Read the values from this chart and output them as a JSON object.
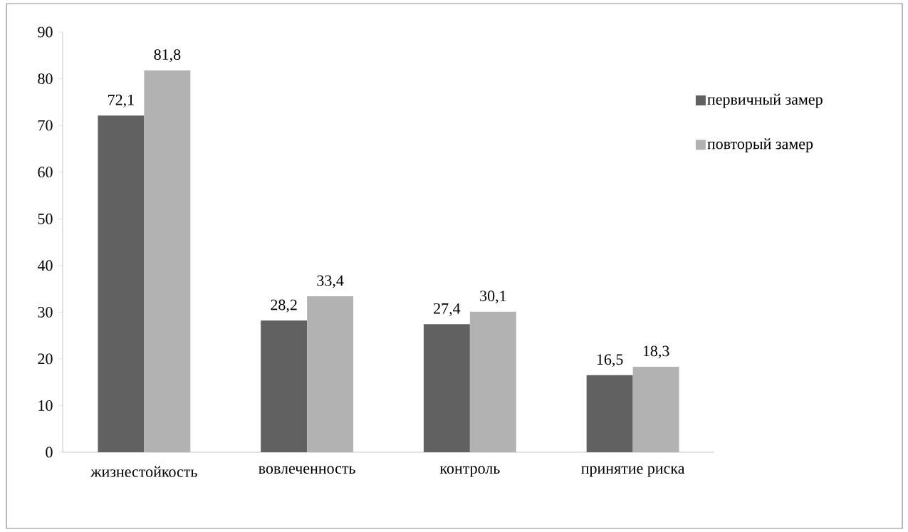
{
  "chart_data": {
    "type": "bar",
    "categories": [
      "жизнестойкость",
      "вовлеченность",
      "контроль",
      "принятие риска"
    ],
    "series": [
      {
        "name": "первичный замер",
        "color": "#616161",
        "values": [
          72.1,
          28.2,
          27.4,
          16.5
        ],
        "value_labels": [
          "72,1",
          "28,2",
          "27,4",
          "16,5"
        ]
      },
      {
        "name": "повторый замер",
        "color": "#b2b2b2",
        "values": [
          81.8,
          33.4,
          30.1,
          18.3
        ],
        "value_labels": [
          "81,8",
          "33,4",
          "30,1",
          "18,3"
        ]
      }
    ],
    "ylim": [
      0,
      90
    ],
    "yticks": [
      0,
      10,
      20,
      30,
      40,
      50,
      60,
      70,
      80,
      90
    ],
    "grid": false,
    "legend": "right"
  }
}
